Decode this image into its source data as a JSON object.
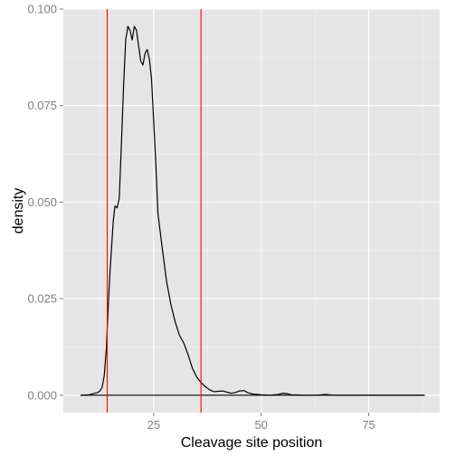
{
  "chart_data": {
    "type": "line",
    "title": "",
    "xlabel": "Cleavage site position",
    "ylabel": "density",
    "xlim": [
      4,
      91.5
    ],
    "ylim": [
      -0.0045,
      0.1
    ],
    "x_ticks": [
      25,
      50,
      75
    ],
    "x_tick_labels": [
      "25",
      "50",
      "75"
    ],
    "y_ticks": [
      0.0,
      0.025,
      0.05,
      0.075,
      0.1
    ],
    "y_tick_labels": [
      "0.000",
      "0.025",
      "0.050",
      "0.075",
      "0.100"
    ],
    "grid": true,
    "legend": "none",
    "background_color": "#e5e5e5",
    "grid_color": "#ffffff",
    "series": [
      {
        "color": "#000000",
        "x": [
          8,
          10,
          11,
          12,
          12.5,
          13,
          13.5,
          14,
          14.4,
          14.8,
          15.2,
          15.6,
          16,
          16.5,
          17,
          17.5,
          18,
          18.5,
          19,
          19.5,
          20,
          20.5,
          21,
          21.5,
          22,
          22.5,
          23,
          23.5,
          24,
          24.5,
          25,
          25.5,
          26,
          27,
          28,
          29,
          30,
          31,
          32,
          33,
          34,
          35,
          36,
          37,
          38,
          39,
          40,
          41,
          42,
          43,
          44,
          45,
          46,
          47,
          48,
          50,
          52,
          54,
          55,
          56,
          57,
          60,
          63,
          65,
          67,
          70,
          75,
          80,
          88
        ],
        "y": [
          0.0,
          0.0001,
          0.0004,
          0.0007,
          0.0011,
          0.002,
          0.005,
          0.012,
          0.022,
          0.031,
          0.038,
          0.045,
          0.049,
          0.0485,
          0.051,
          0.065,
          0.08,
          0.092,
          0.0955,
          0.0945,
          0.092,
          0.0955,
          0.0945,
          0.0905,
          0.0865,
          0.0855,
          0.0885,
          0.0895,
          0.087,
          0.082,
          0.071,
          0.06,
          0.047,
          0.038,
          0.0295,
          0.0235,
          0.019,
          0.0155,
          0.0135,
          0.0105,
          0.007,
          0.0047,
          0.0033,
          0.0022,
          0.0014,
          0.0009,
          0.001,
          0.0011,
          0.0008,
          0.0005,
          0.0007,
          0.0011,
          0.0012,
          0.0006,
          0.0003,
          0.0001,
          0.0,
          0.0002,
          0.0005,
          0.0004,
          0.0001,
          0.0,
          0.0,
          0.0002,
          0.0,
          0.0,
          0.0,
          0.0,
          0.0
        ]
      }
    ],
    "vlines": [
      {
        "x": 14.2,
        "color": "#ff0000"
      },
      {
        "x": 36.0,
        "color": "#ff0000"
      }
    ],
    "baseline": {
      "x_range": [
        8,
        88
      ],
      "y": 0.0,
      "color": "#000000"
    }
  }
}
